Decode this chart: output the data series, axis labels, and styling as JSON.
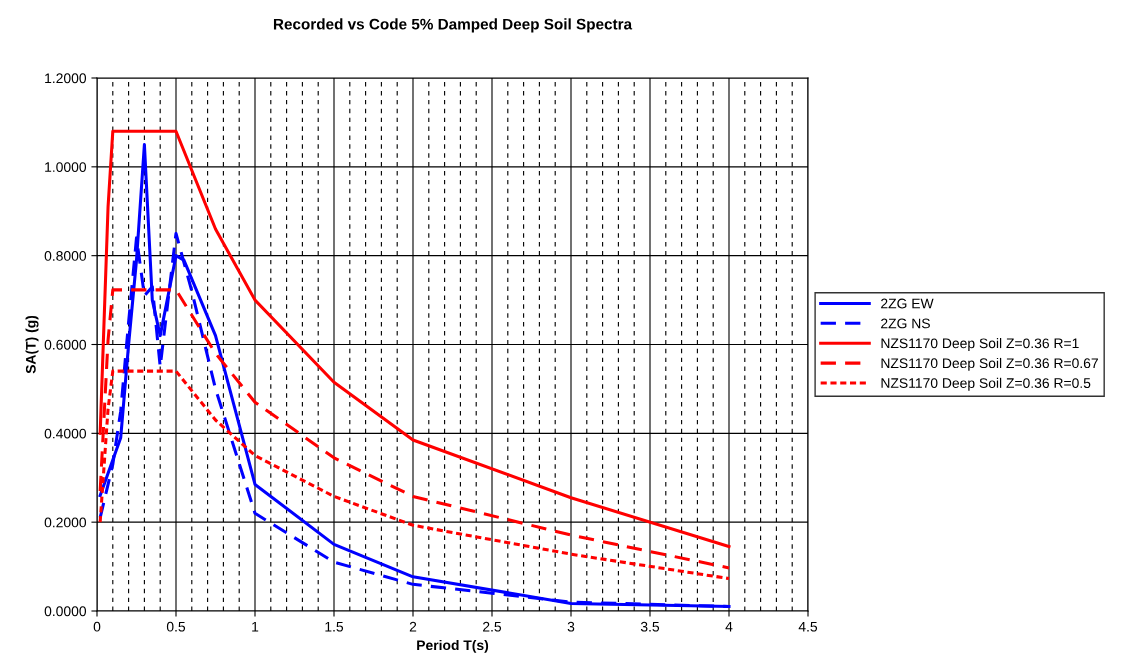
{
  "chart_data": {
    "type": "line",
    "title": "Recorded vs Code 5% Damped Deep Soil Spectra",
    "xlabel": "Period T(s)",
    "ylabel": "SA(T) (g)",
    "xlim": [
      0,
      4.5
    ],
    "xticks": [
      0,
      0.5,
      1,
      1.5,
      2,
      2.5,
      3,
      3.5,
      4,
      4.5
    ],
    "ylim": [
      0,
      1.2
    ],
    "yticks": [
      {
        "value": 0,
        "label": "0.0000"
      },
      {
        "value": 0.2,
        "label": "0.2000"
      },
      {
        "value": 0.4,
        "label": "0.4000"
      },
      {
        "value": 0.6,
        "label": "0.6000"
      },
      {
        "value": 0.8,
        "label": "0.8000"
      },
      {
        "value": 1.0,
        "label": "1.0000"
      },
      {
        "value": 1.2,
        "label": "1.2000"
      }
    ],
    "grid": true,
    "legend": "right",
    "marker": "none",
    "series": [
      {
        "name": "2ZG EW",
        "color": "#0000ff",
        "line_style": "solid",
        "x": [
          0.02,
          0.15,
          0.2,
          0.25,
          0.3,
          0.35,
          0.4,
          0.5,
          0.55,
          0.75,
          1.0,
          1.5,
          2.0,
          3.0,
          4.0
        ],
        "values": [
          0.26,
          0.39,
          0.6,
          0.79,
          1.05,
          0.7,
          0.62,
          0.8,
          0.79,
          0.62,
          0.285,
          0.15,
          0.077,
          0.017,
          0.01
        ]
      },
      {
        "name": "2ZG NS",
        "color": "#0000ff",
        "line_style": "dashed",
        "x": [
          0.02,
          0.1,
          0.15,
          0.2,
          0.25,
          0.3,
          0.35,
          0.4,
          0.5,
          0.6,
          0.75,
          1.0,
          1.5,
          2.0,
          2.5,
          3.0,
          4.0
        ],
        "values": [
          0.21,
          0.33,
          0.45,
          0.65,
          0.84,
          0.71,
          0.73,
          0.55,
          0.85,
          0.72,
          0.5,
          0.22,
          0.11,
          0.06,
          0.04,
          0.02,
          0.01
        ]
      },
      {
        "name": "NZS1170 Deep Soil Z=0.36 R=1",
        "color": "#ff0000",
        "line_style": "solid",
        "x": [
          0.02,
          0.07,
          0.1,
          0.5,
          0.75,
          1.0,
          1.5,
          2.0,
          3.0,
          4.0
        ],
        "values": [
          0.4,
          0.91,
          1.08,
          1.08,
          0.86,
          0.7,
          0.515,
          0.385,
          0.255,
          0.145
        ]
      },
      {
        "name": "NZS1170 Deep Soil Z=0.36 R=0.67",
        "color": "#ff0000",
        "line_style": "dashed",
        "x": [
          0.02,
          0.07,
          0.1,
          0.5,
          0.75,
          1.0,
          1.5,
          2.0,
          3.0,
          4.0
        ],
        "values": [
          0.27,
          0.61,
          0.723,
          0.723,
          0.58,
          0.47,
          0.345,
          0.258,
          0.171,
          0.097
        ]
      },
      {
        "name": "NZS1170 Deep Soil Z=0.36 R=0.5",
        "color": "#ff0000",
        "line_style": "dotted",
        "x": [
          0.02,
          0.07,
          0.1,
          0.5,
          0.75,
          1.0,
          1.5,
          2.0,
          3.0,
          4.0
        ],
        "values": [
          0.2,
          0.455,
          0.54,
          0.54,
          0.43,
          0.35,
          0.258,
          0.193,
          0.128,
          0.073
        ]
      }
    ]
  }
}
